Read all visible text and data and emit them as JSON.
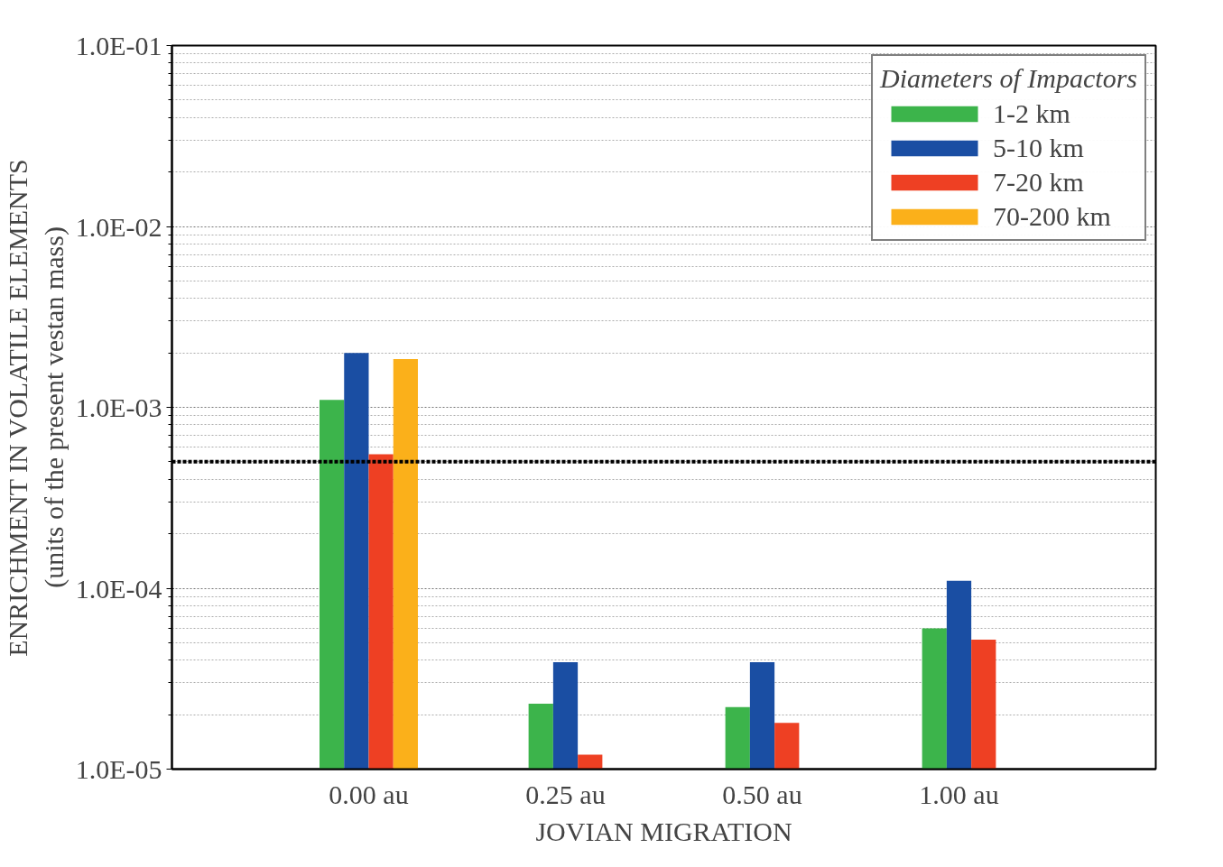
{
  "chart_data": {
    "type": "bar",
    "xlabel": "JOVIAN MIGRATION",
    "ylabel": "ENRICHMENT IN VOLATILE ELEMENTS\n(units of the present vestan mass)",
    "legend_title": "Diameters of Impactors",
    "categories": [
      "0.00 au",
      "0.25 au",
      "0.50 au",
      "1.00 au"
    ],
    "series": [
      {
        "name": "1-2 km",
        "color": "#3cb44b",
        "values": [
          0.0011,
          2.3e-05,
          2.2e-05,
          6e-05
        ]
      },
      {
        "name": "5-10 km",
        "color": "#1a4ea3",
        "values": [
          0.002,
          3.9e-05,
          3.9e-05,
          0.00011
        ]
      },
      {
        "name": "7-20 km",
        "color": "#ee4023",
        "values": [
          0.00055,
          1.2e-05,
          1.8e-05,
          5.2e-05
        ]
      },
      {
        "name": "70-200 km",
        "color": "#fbb01a",
        "values": [
          0.00185,
          null,
          null,
          null
        ]
      }
    ],
    "log": true,
    "ylim": [
      1e-05,
      0.1
    ],
    "yticks": [
      {
        "value": 1e-05,
        "label": "1.0E-05"
      },
      {
        "value": 0.0001,
        "label": "1.0E-04"
      },
      {
        "value": 0.001,
        "label": "1.0E-03"
      },
      {
        "value": 0.01,
        "label": "1.0E-02"
      },
      {
        "value": 0.1,
        "label": "1.0E-01"
      }
    ],
    "ref_lines": [
      {
        "axis": "y",
        "value": 0.0005,
        "color": "#000000",
        "line_style": "dashed"
      }
    ],
    "grid": "y",
    "legend": "top right"
  }
}
